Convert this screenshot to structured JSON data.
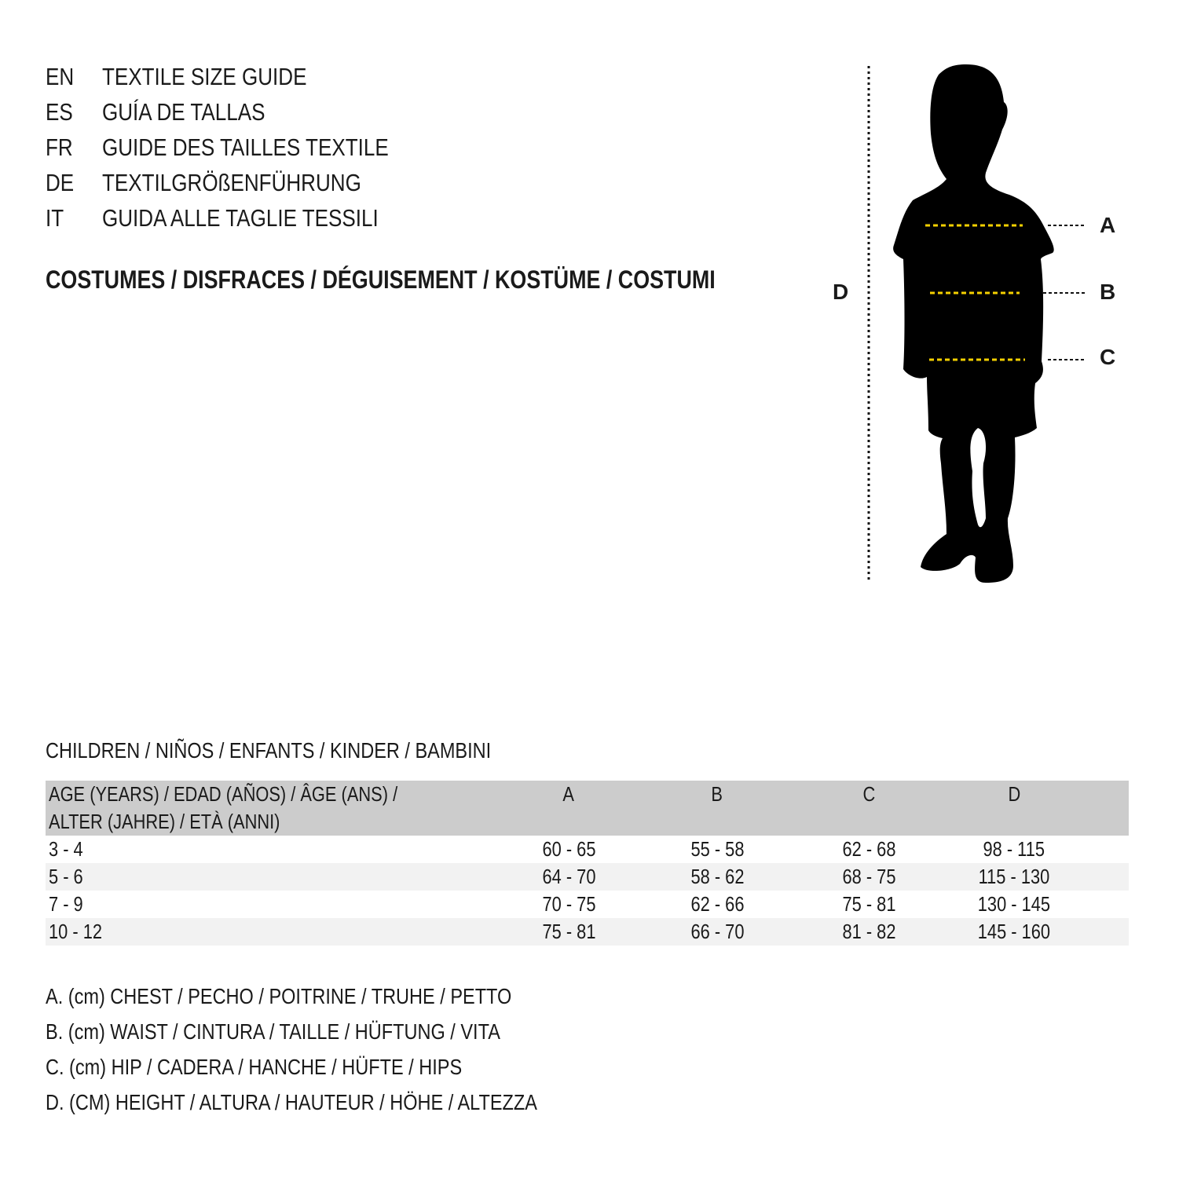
{
  "languages": [
    {
      "code": "EN",
      "text": "TEXTILE SIZE GUIDE"
    },
    {
      "code": "ES",
      "text": "GUÍA DE TALLAS"
    },
    {
      "code": "FR",
      "text": "GUIDE DES TAILLES TEXTILE"
    },
    {
      "code": "DE",
      "text": "TEXTILGRÖßENFÜHRUNG"
    },
    {
      "code": "IT",
      "text": "GUIDA ALLE TAGLIE TESSILI"
    }
  ],
  "category": "COSTUMES / DISFRACES / DÉGUISEMENT / KOSTÜME / COSTUMI",
  "diagram": {
    "labels": {
      "a": "A",
      "b": "B",
      "c": "C",
      "d": "D"
    },
    "accent_color": "#f5d000"
  },
  "section_title": "CHILDREN / NIÑOS / ENFANTS / KINDER / BAMBINI",
  "table": {
    "header": {
      "age_line1": "AGE (YEARS) / EDAD (AÑOS) / ÂGE (ANS) /",
      "age_line2": "ALTER (JAHRE) / ETÀ (ANNI)",
      "a": "A",
      "b": "B",
      "c": "C",
      "d": "D"
    },
    "rows": [
      {
        "age": "3 - 4",
        "a": "60 - 65",
        "b": "55 - 58",
        "c": "62 - 68",
        "d": "98 - 115"
      },
      {
        "age": "5 - 6",
        "a": "64 - 70",
        "b": "58 - 62",
        "c": "68 - 75",
        "d": "115 - 130"
      },
      {
        "age": "7 - 9",
        "a": "70 - 75",
        "b": "62 - 66",
        "c": "75 - 81",
        "d": "130 - 145"
      },
      {
        "age": "10 - 12",
        "a": "75 - 81",
        "b": "66 - 70",
        "c": "81 - 82",
        "d": "145 - 160"
      }
    ]
  },
  "legend": [
    "A. (cm) CHEST / PECHO / POITRINE / TRUHE / PETTO",
    "B. (cm) WAIST / CINTURA / TAILLE / HÜFTUNG / VITA",
    "C. (cm) HIP / CADERA / HANCHE / HÜFTE / HIPS",
    "D. (CM) HEIGHT / ALTURA / HAUTEUR / HÖHE / ALTEZZA"
  ]
}
